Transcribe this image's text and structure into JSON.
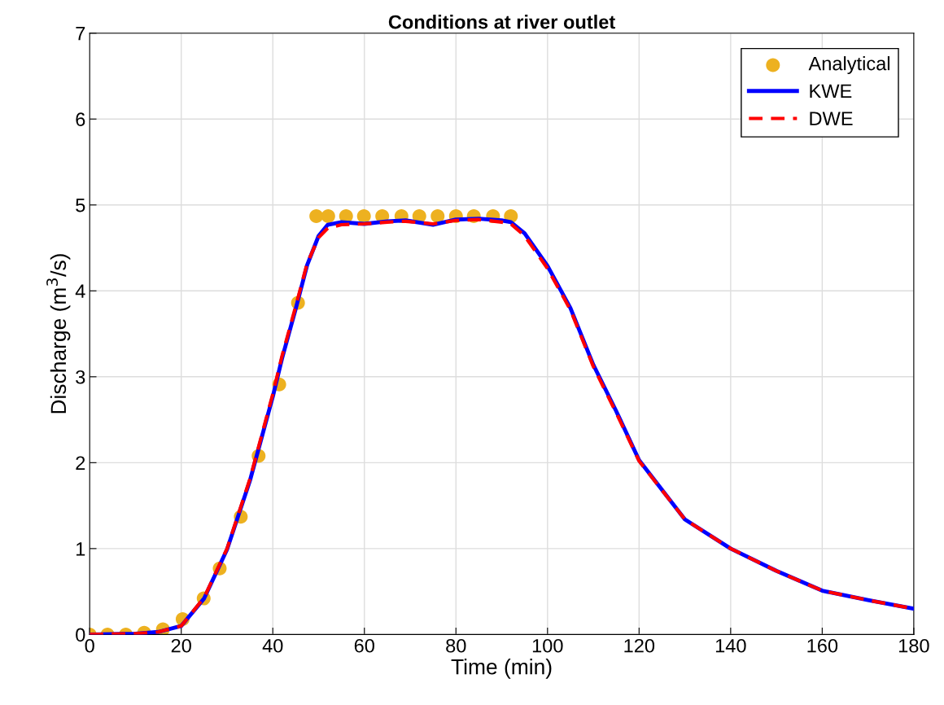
{
  "chart_data": {
    "type": "line",
    "title": "Conditions at river outlet",
    "xlabel": "Time (min)",
    "ylabel": "Discharge (m$^{3}$/s)",
    "xlim": [
      0,
      180
    ],
    "xticks": [
      0,
      20,
      40,
      60,
      80,
      100,
      120,
      140,
      160,
      180
    ],
    "ylim": [
      0,
      7
    ],
    "yticks": [
      0,
      1,
      2,
      3,
      4,
      5,
      6,
      7
    ],
    "grid": true,
    "legend": "top right",
    "series": [
      {
        "name": "Analytical",
        "type": "scatter",
        "marker": "circle",
        "color": "#edb120",
        "x": [
          0,
          3.9,
          7.9,
          11.9,
          16,
          20.3,
          24.9,
          28.4,
          33,
          36.9,
          41.4,
          45.5,
          49.5,
          52.1,
          56,
          59.9,
          63.9,
          68.1,
          72,
          76,
          80,
          83.9,
          88.1,
          92
        ],
        "values": [
          0,
          0,
          0,
          0.02,
          0.06,
          0.18,
          0.42,
          0.77,
          1.37,
          2.08,
          2.91,
          3.86,
          4.87,
          4.87,
          4.87,
          4.87,
          4.87,
          4.87,
          4.87,
          4.87,
          4.87,
          4.87,
          4.87,
          4.87
        ]
      },
      {
        "name": "KWE",
        "line_style": "solid",
        "color": "#0000ff",
        "x": [
          0,
          10,
          15,
          20,
          25,
          30,
          35,
          40,
          42,
          45,
          47.5,
          50,
          52,
          55,
          60,
          65,
          69,
          75,
          80,
          85,
          90,
          92,
          95,
          100,
          105,
          110,
          115,
          120,
          130,
          140,
          150,
          160,
          170,
          180
        ],
        "values": [
          0,
          0.01,
          0.03,
          0.1,
          0.42,
          0.99,
          1.79,
          2.77,
          3.21,
          3.79,
          4.3,
          4.64,
          4.77,
          4.8,
          4.78,
          4.81,
          4.82,
          4.77,
          4.83,
          4.84,
          4.82,
          4.8,
          4.67,
          4.29,
          3.8,
          3.14,
          2.6,
          2.03,
          1.34,
          1,
          0.74,
          0.51,
          0.4,
          0.3
        ]
      },
      {
        "name": "DWE",
        "line_style": "dashed",
        "color": "#ff0000",
        "x": [
          0,
          10,
          15,
          20,
          25,
          30,
          35,
          40,
          42,
          45,
          47.5,
          50,
          52,
          55,
          60,
          65,
          69,
          75,
          80,
          85,
          90,
          92,
          95,
          100,
          105,
          110,
          115,
          120,
          130,
          140,
          150,
          160,
          170,
          180
        ],
        "values": [
          0,
          0.01,
          0.03,
          0.1,
          0.43,
          1.0,
          1.81,
          2.8,
          3.24,
          3.82,
          4.32,
          4.62,
          4.73,
          4.77,
          4.78,
          4.8,
          4.81,
          4.78,
          4.82,
          4.83,
          4.8,
          4.78,
          4.64,
          4.26,
          3.78,
          3.12,
          2.58,
          2.02,
          1.34,
          1,
          0.74,
          0.51,
          0.4,
          0.3
        ]
      }
    ]
  }
}
